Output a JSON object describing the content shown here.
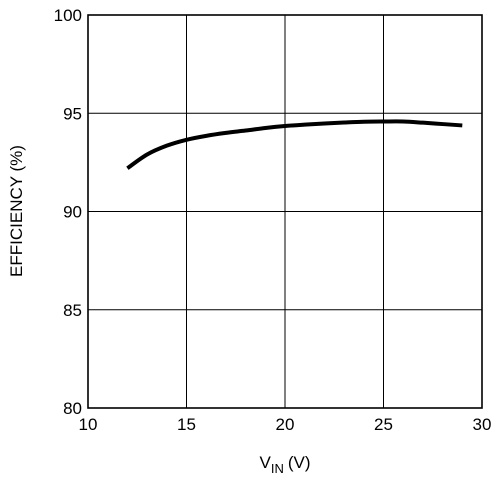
{
  "chart_data": {
    "type": "line",
    "xlabel": "V",
    "xlabel_sub": "IN",
    "xlabel_unit": "(V)",
    "ylabel": "EFFICIENCY (%)",
    "xlim": [
      10,
      30
    ],
    "ylim": [
      80,
      100
    ],
    "x_ticks": [
      "10",
      "15",
      "20",
      "25",
      "30"
    ],
    "y_ticks": [
      "80",
      "85",
      "90",
      "95",
      "100"
    ],
    "grid": true,
    "legend": "none",
    "series": [
      {
        "color": "#000000",
        "x": [
          12,
          13,
          14,
          15,
          16,
          17,
          18,
          19,
          20,
          21,
          22,
          23,
          24,
          25,
          26,
          27,
          28,
          29
        ],
        "y": [
          92.2,
          92.9,
          93.35,
          93.65,
          93.85,
          94.0,
          94.12,
          94.25,
          94.35,
          94.42,
          94.48,
          94.53,
          94.57,
          94.58,
          94.58,
          94.52,
          94.45,
          94.38
        ]
      }
    ]
  }
}
